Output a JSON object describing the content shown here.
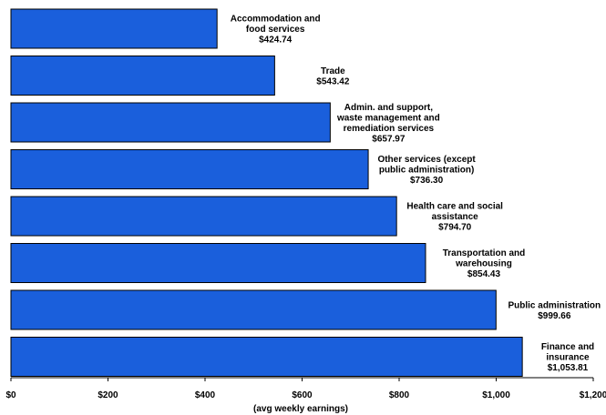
{
  "chart_data": {
    "type": "bar",
    "orientation": "horizontal",
    "categories": [
      "Accommodation and food services",
      "Trade",
      "Admin. and support, waste management and remediation services",
      "Other services (except public administration)",
      "Health care and social assistance",
      "Transportation and warehousing",
      "Public administration",
      "Finance and insurance"
    ],
    "label_lines": [
      [
        "Accommodation and",
        "food services"
      ],
      [
        "Trade"
      ],
      [
        "Admin. and support,",
        "waste management and",
        "remediation services"
      ],
      [
        "Other services (except",
        "public administration)"
      ],
      [
        "Health care and social",
        "assistance"
      ],
      [
        "Transportation and",
        "warehousing"
      ],
      [
        "Public administration"
      ],
      [
        "Finance and",
        "insurance"
      ]
    ],
    "values": [
      424.74,
      543.42,
      657.97,
      736.3,
      794.7,
      854.43,
      999.66,
      1053.81
    ],
    "value_labels": [
      "$424.74",
      "$543.42",
      "$657.97",
      "$736.30",
      "$794.70",
      "$854.43",
      "$999.66",
      "$1,053.81"
    ],
    "xlim": [
      0,
      1200
    ],
    "xticks": [
      0,
      200,
      400,
      600,
      800,
      1000,
      1200
    ],
    "xtick_labels": [
      "$0",
      "$200",
      "$400",
      "$600",
      "$800",
      "$1,000",
      "$1,200"
    ],
    "xlabel": "(avg weekly earnings)",
    "ylabel": "",
    "title": "",
    "grid": false,
    "colors": {
      "bar": "#1a5fdc",
      "bar_stroke": "#000000"
    }
  }
}
